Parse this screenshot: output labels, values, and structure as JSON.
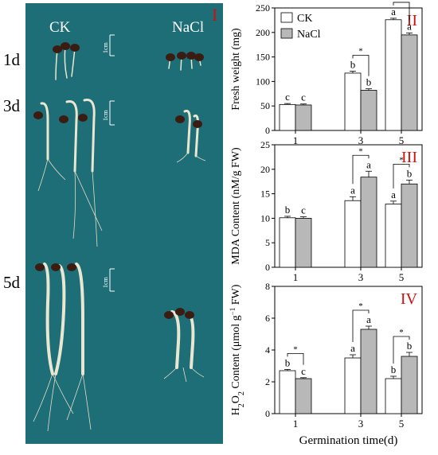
{
  "photo": {
    "panel_label": "I",
    "treatments": [
      "CK",
      "NaCl"
    ],
    "days": [
      "1d",
      "3d",
      "5d"
    ],
    "scale_label": "1cm"
  },
  "colors": {
    "photo_bg": "#1d6e76",
    "ck_bar": "#ffffff",
    "nacl_bar": "#b8b8b8",
    "panel_label": "#cc1111"
  },
  "chart_data": [
    {
      "type": "bar",
      "panel": "II",
      "ylabel": "Fresh weight (mg)",
      "categories": [
        "1",
        "3",
        "5"
      ],
      "ylim": [
        0,
        250
      ],
      "yticks": [
        0,
        50,
        100,
        150,
        200,
        250
      ],
      "legend": {
        "placement": "top-left",
        "entries": [
          "CK",
          "NaCl"
        ]
      },
      "series": [
        {
          "name": "CK",
          "values": [
            53,
            117,
            226
          ],
          "errors": [
            2,
            4,
            3
          ],
          "letters": [
            "c",
            "b",
            "a"
          ]
        },
        {
          "name": "NaCl",
          "values": [
            52,
            82,
            195
          ],
          "errors": [
            2,
            3,
            4
          ],
          "letters": [
            "c",
            "b",
            "a"
          ]
        }
      ],
      "significance": [
        {
          "category": "3",
          "label": "*"
        },
        {
          "category": "5",
          "label": "*"
        }
      ]
    },
    {
      "type": "bar",
      "panel": "III",
      "ylabel": "MDA Content (nM/g FW)",
      "categories": [
        "1",
        "3",
        "5"
      ],
      "ylim": [
        0,
        25
      ],
      "yticks": [
        0,
        5,
        10,
        15,
        20,
        25
      ],
      "series": [
        {
          "name": "CK",
          "values": [
            10.1,
            13.6,
            12.9
          ],
          "errors": [
            0.3,
            0.8,
            0.6
          ],
          "letters": [
            "b",
            "a",
            "a"
          ]
        },
        {
          "name": "NaCl",
          "values": [
            10.0,
            18.4,
            17.0
          ],
          "errors": [
            0.3,
            1.2,
            0.8
          ],
          "letters": [
            "c",
            "a",
            "b"
          ]
        }
      ],
      "significance": [
        {
          "category": "3",
          "label": "*"
        },
        {
          "category": "5",
          "label": "*"
        }
      ]
    },
    {
      "type": "bar",
      "panel": "IV",
      "ylabel": "H2O2 Content (μmol g⁻¹ FW)",
      "xlabel": "Germination time(d)",
      "categories": [
        "1",
        "3",
        "5"
      ],
      "ylim": [
        0,
        8
      ],
      "yticks": [
        0,
        2,
        4,
        6,
        8
      ],
      "series": [
        {
          "name": "CK",
          "values": [
            2.7,
            3.5,
            2.2
          ],
          "errors": [
            0.08,
            0.2,
            0.15
          ],
          "letters": [
            "b",
            "a",
            "b"
          ]
        },
        {
          "name": "NaCl",
          "values": [
            2.2,
            5.3,
            3.6
          ],
          "errors": [
            0.06,
            0.2,
            0.25
          ],
          "letters": [
            "c",
            "a",
            "b"
          ]
        }
      ],
      "significance": [
        {
          "category": "1",
          "label": "*"
        },
        {
          "category": "3",
          "label": "*"
        },
        {
          "category": "5",
          "label": "*"
        }
      ]
    }
  ]
}
